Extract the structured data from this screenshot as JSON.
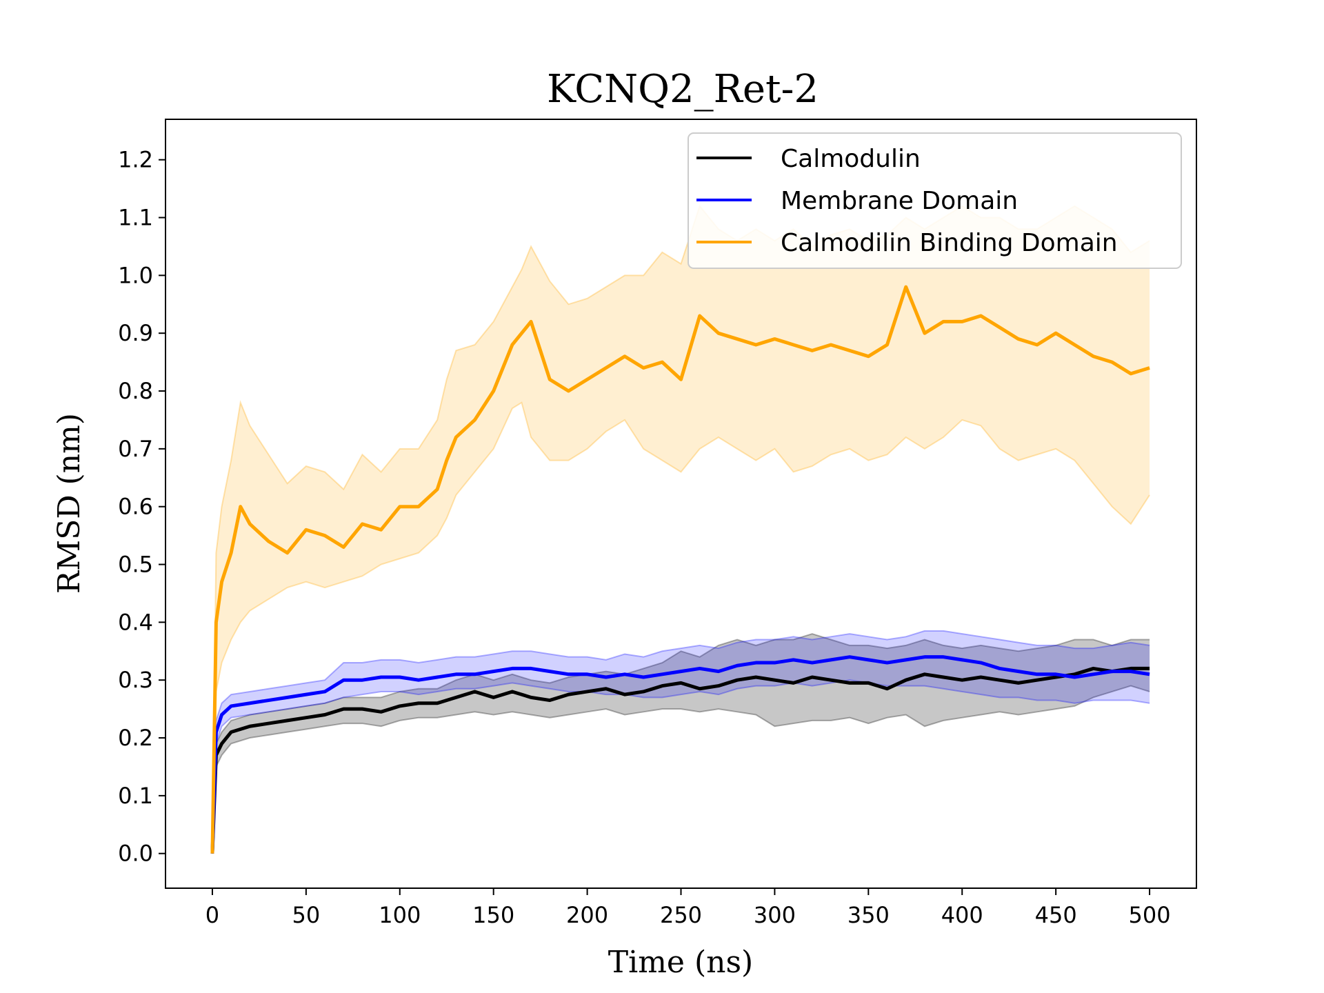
{
  "chart_data": {
    "type": "line",
    "title": "KCNQ2_Ret-2",
    "xlabel": "Time (ns)",
    "ylabel": "RMSD (nm)",
    "xlim": [
      -25,
      525
    ],
    "ylim": [
      -0.06,
      1.27
    ],
    "xticks": [
      0,
      50,
      100,
      150,
      200,
      250,
      300,
      350,
      400,
      450,
      500
    ],
    "xtick_labels": [
      "0",
      "50",
      "100",
      "150",
      "200",
      "250",
      "300",
      "350",
      "400",
      "450",
      "500"
    ],
    "yticks": [
      0.0,
      0.1,
      0.2,
      0.3,
      0.4,
      0.5,
      0.6,
      0.7,
      0.8,
      0.9,
      1.0,
      1.1,
      1.2
    ],
    "ytick_labels": [
      "0.0",
      "0.1",
      "0.2",
      "0.3",
      "0.4",
      "0.5",
      "0.6",
      "0.7",
      "0.8",
      "0.9",
      "1.0",
      "1.1",
      "1.2"
    ],
    "legend_position": "top-right",
    "grid": false,
    "series": [
      {
        "name": "Calmodulin",
        "color": "#000000",
        "x": [
          0,
          2,
          5,
          10,
          20,
          30,
          40,
          50,
          60,
          70,
          80,
          90,
          100,
          110,
          120,
          130,
          140,
          150,
          160,
          170,
          180,
          190,
          200,
          210,
          220,
          230,
          240,
          250,
          260,
          270,
          280,
          290,
          300,
          310,
          320,
          330,
          340,
          350,
          360,
          370,
          380,
          390,
          400,
          410,
          420,
          430,
          440,
          450,
          460,
          470,
          480,
          490,
          500
        ],
        "y": [
          0.0,
          0.17,
          0.19,
          0.21,
          0.22,
          0.225,
          0.23,
          0.235,
          0.24,
          0.25,
          0.25,
          0.245,
          0.255,
          0.26,
          0.26,
          0.27,
          0.28,
          0.27,
          0.28,
          0.27,
          0.265,
          0.275,
          0.28,
          0.285,
          0.275,
          0.28,
          0.29,
          0.295,
          0.285,
          0.29,
          0.3,
          0.305,
          0.3,
          0.295,
          0.305,
          0.3,
          0.295,
          0.295,
          0.285,
          0.3,
          0.31,
          0.305,
          0.3,
          0.305,
          0.3,
          0.295,
          0.3,
          0.305,
          0.31,
          0.32,
          0.315,
          0.32,
          0.32
        ],
        "band_lower": [
          0.0,
          0.15,
          0.17,
          0.19,
          0.2,
          0.205,
          0.21,
          0.215,
          0.22,
          0.225,
          0.225,
          0.22,
          0.23,
          0.235,
          0.235,
          0.24,
          0.245,
          0.24,
          0.245,
          0.24,
          0.235,
          0.24,
          0.245,
          0.25,
          0.24,
          0.245,
          0.25,
          0.25,
          0.245,
          0.25,
          0.245,
          0.24,
          0.22,
          0.225,
          0.23,
          0.23,
          0.235,
          0.225,
          0.235,
          0.24,
          0.22,
          0.23,
          0.235,
          0.24,
          0.245,
          0.24,
          0.245,
          0.25,
          0.255,
          0.27,
          0.28,
          0.29,
          0.28
        ],
        "band_upper": [
          0.0,
          0.19,
          0.21,
          0.23,
          0.24,
          0.245,
          0.25,
          0.255,
          0.26,
          0.27,
          0.27,
          0.27,
          0.28,
          0.285,
          0.285,
          0.3,
          0.31,
          0.3,
          0.31,
          0.3,
          0.295,
          0.305,
          0.31,
          0.315,
          0.31,
          0.32,
          0.33,
          0.35,
          0.34,
          0.36,
          0.37,
          0.36,
          0.37,
          0.37,
          0.38,
          0.37,
          0.36,
          0.36,
          0.355,
          0.36,
          0.37,
          0.36,
          0.355,
          0.36,
          0.355,
          0.35,
          0.355,
          0.36,
          0.37,
          0.37,
          0.36,
          0.37,
          0.37
        ]
      },
      {
        "name": "Membrane Domain",
        "color": "#0000ff",
        "x": [
          0,
          2,
          5,
          10,
          20,
          30,
          40,
          50,
          60,
          70,
          80,
          90,
          100,
          110,
          120,
          130,
          140,
          150,
          160,
          170,
          180,
          190,
          200,
          210,
          220,
          230,
          240,
          250,
          260,
          270,
          280,
          290,
          300,
          310,
          320,
          330,
          340,
          350,
          360,
          370,
          380,
          390,
          400,
          410,
          420,
          430,
          440,
          450,
          460,
          470,
          480,
          490,
          500
        ],
        "y": [
          0.0,
          0.21,
          0.24,
          0.255,
          0.26,
          0.265,
          0.27,
          0.275,
          0.28,
          0.3,
          0.3,
          0.305,
          0.305,
          0.3,
          0.305,
          0.31,
          0.31,
          0.315,
          0.32,
          0.32,
          0.315,
          0.31,
          0.31,
          0.305,
          0.31,
          0.305,
          0.31,
          0.315,
          0.32,
          0.315,
          0.325,
          0.33,
          0.33,
          0.335,
          0.33,
          0.335,
          0.34,
          0.335,
          0.33,
          0.335,
          0.34,
          0.34,
          0.335,
          0.33,
          0.32,
          0.315,
          0.31,
          0.31,
          0.305,
          0.31,
          0.315,
          0.315,
          0.31
        ],
        "band_lower": [
          0.0,
          0.19,
          0.22,
          0.235,
          0.24,
          0.245,
          0.25,
          0.255,
          0.26,
          0.27,
          0.275,
          0.28,
          0.28,
          0.275,
          0.28,
          0.285,
          0.285,
          0.29,
          0.295,
          0.29,
          0.285,
          0.28,
          0.28,
          0.275,
          0.275,
          0.27,
          0.27,
          0.275,
          0.28,
          0.275,
          0.285,
          0.29,
          0.29,
          0.295,
          0.29,
          0.295,
          0.3,
          0.295,
          0.29,
          0.29,
          0.29,
          0.285,
          0.28,
          0.275,
          0.27,
          0.27,
          0.265,
          0.265,
          0.26,
          0.265,
          0.265,
          0.265,
          0.26
        ],
        "band_upper": [
          0.0,
          0.23,
          0.26,
          0.275,
          0.28,
          0.285,
          0.29,
          0.295,
          0.3,
          0.33,
          0.33,
          0.335,
          0.335,
          0.33,
          0.335,
          0.34,
          0.34,
          0.345,
          0.35,
          0.35,
          0.345,
          0.34,
          0.34,
          0.335,
          0.345,
          0.34,
          0.35,
          0.355,
          0.36,
          0.355,
          0.365,
          0.37,
          0.37,
          0.375,
          0.37,
          0.375,
          0.38,
          0.375,
          0.37,
          0.375,
          0.385,
          0.385,
          0.38,
          0.375,
          0.37,
          0.365,
          0.36,
          0.36,
          0.355,
          0.355,
          0.36,
          0.365,
          0.36
        ]
      },
      {
        "name": "Calmodilin Binding Domain",
        "color": "#ffa500",
        "x": [
          0,
          2,
          5,
          10,
          15,
          20,
          30,
          40,
          50,
          60,
          70,
          80,
          90,
          100,
          110,
          120,
          125,
          130,
          140,
          150,
          160,
          165,
          170,
          180,
          190,
          200,
          210,
          220,
          230,
          240,
          250,
          260,
          270,
          280,
          290,
          300,
          310,
          320,
          330,
          340,
          350,
          360,
          370,
          380,
          390,
          400,
          410,
          420,
          430,
          440,
          450,
          460,
          470,
          480,
          490,
          500
        ],
        "y": [
          0.0,
          0.4,
          0.47,
          0.52,
          0.6,
          0.57,
          0.54,
          0.52,
          0.56,
          0.55,
          0.53,
          0.57,
          0.56,
          0.6,
          0.6,
          0.63,
          0.68,
          0.72,
          0.75,
          0.8,
          0.88,
          0.9,
          0.92,
          0.82,
          0.8,
          0.82,
          0.84,
          0.86,
          0.84,
          0.85,
          0.82,
          0.93,
          0.9,
          0.89,
          0.88,
          0.89,
          0.88,
          0.87,
          0.88,
          0.87,
          0.86,
          0.88,
          0.98,
          0.9,
          0.92,
          0.92,
          0.93,
          0.91,
          0.89,
          0.88,
          0.9,
          0.88,
          0.86,
          0.85,
          0.83,
          0.84
        ],
        "band_lower": [
          0.0,
          0.28,
          0.33,
          0.37,
          0.4,
          0.42,
          0.44,
          0.46,
          0.47,
          0.46,
          0.47,
          0.48,
          0.5,
          0.51,
          0.52,
          0.55,
          0.58,
          0.62,
          0.66,
          0.7,
          0.77,
          0.78,
          0.72,
          0.68,
          0.68,
          0.7,
          0.73,
          0.75,
          0.7,
          0.68,
          0.66,
          0.7,
          0.72,
          0.7,
          0.68,
          0.7,
          0.66,
          0.67,
          0.69,
          0.7,
          0.68,
          0.69,
          0.72,
          0.7,
          0.72,
          0.75,
          0.74,
          0.7,
          0.68,
          0.69,
          0.7,
          0.68,
          0.64,
          0.6,
          0.57,
          0.62
        ],
        "band_upper": [
          0.0,
          0.52,
          0.6,
          0.68,
          0.78,
          0.74,
          0.69,
          0.64,
          0.67,
          0.66,
          0.63,
          0.69,
          0.66,
          0.7,
          0.7,
          0.75,
          0.82,
          0.87,
          0.88,
          0.92,
          0.98,
          1.01,
          1.05,
          0.99,
          0.95,
          0.96,
          0.98,
          1.0,
          1.0,
          1.04,
          1.02,
          1.12,
          1.08,
          1.06,
          1.08,
          1.06,
          1.08,
          1.05,
          1.07,
          1.08,
          1.06,
          1.07,
          1.1,
          1.08,
          1.1,
          1.12,
          1.1,
          1.1,
          1.08,
          1.08,
          1.1,
          1.12,
          1.1,
          1.08,
          1.04,
          1.06
        ]
      }
    ]
  }
}
